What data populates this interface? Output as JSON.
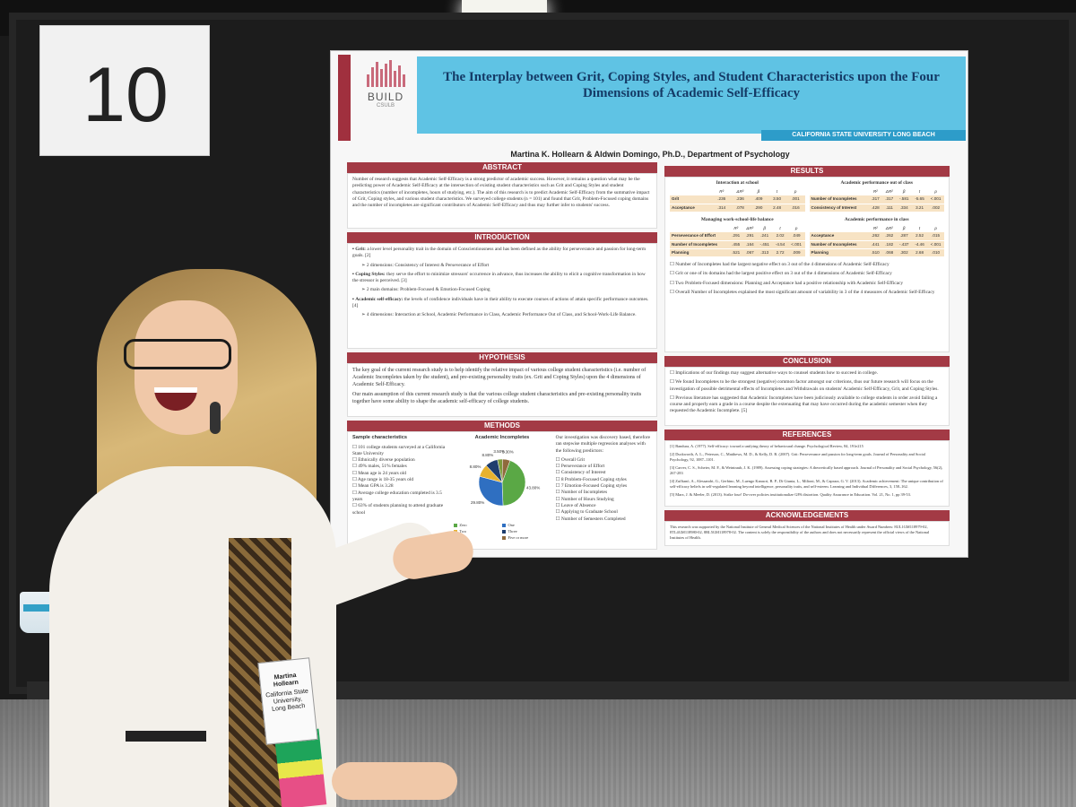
{
  "booth": {
    "number": "10"
  },
  "badge": {
    "line1": "Martina Hollearn",
    "line2": "California State University, Long Beach"
  },
  "poster": {
    "logo": {
      "text": "BUILD",
      "sub": "CSULB"
    },
    "title": "The Interplay between Grit, Coping Styles, and Student Characteristics upon the Four Dimensions of Academic Self-Efficacy",
    "university": "CALIFORNIA STATE UNIVERSITY LONG BEACH",
    "authors": "Martina K. Hollearn & Aldwin Domingo, Ph.D., Department of Psychology",
    "abstract": {
      "heading": "ABSTRACT",
      "text": "Number of research suggests that Academic Self-Efficacy is a strong predictor of academic success. However, it remains a question what may be the predicting power of Academic Self-Efficacy at the intersection of existing student characteristics such as Grit and Coping Styles and student characteristics (number of incompletes, hours of studying, etc.). The aim of this research is to predict Academic Self-Efficacy from the summative impact of Grit, Coping styles, and various student characteristics. We surveyed college students (n = 101) and found that Grit, Problem-Focused coping domains and the number of incompletes are significant contributors of Academic Self-Efficacy and thus may further infer to students' success."
    },
    "introduction": {
      "heading": "INTRODUCTION",
      "grit_term": "Grit:",
      "grit_text": "a lower level personality trait in the domain of Conscientiousness and has been defined as the ability for perseverance and passion for long-term goals. [2]",
      "grit_sub": "2 dimensions: Consistency of Interest & Perseverance of Effort",
      "coping_term": "Coping Styles:",
      "coping_text": "they serve the effort to minimize stressors' occurrence in advance, thus increases the ability to elicit a cognitive transformation in how the stressor is perceived. [3]",
      "coping_sub": "2 main domains: Problem-Focused & Emotion-Focused Coping",
      "ase_term": "Academic self-efficacy:",
      "ase_text": "the levels of confidence individuals have in their ability to execute courses of actions of attain specific performance outcomes. [4]",
      "ase_sub": "4 dimensions: Interaction at School, Academic Performance in Class, Academic Performance Out of Class, and School-Work-Life Balance."
    },
    "hypothesis": {
      "heading": "HYPOTHESIS",
      "p1": "The key goal of the current research study is to help identify the relative impact of various college student characteristics (i.e. number of Academic Incompletes taken by the student), and pre-existing personality traits (ex. Grit and Coping Styles) upon the 4 dimensions of Academic Self-Efficacy.",
      "p2": "Our main assumption of this current research study is that the various college student characteristics and pre-existing personality traits together have some ability to shape the academic self-efficacy of college students."
    },
    "methods": {
      "heading": "METHODS",
      "sample_title": "Sample characteristics",
      "sample": [
        "101 college students surveyed at a California State University",
        "Ethnically diverse population",
        "49% males, 51% females",
        "Mean age is 24 years old",
        "Age range is 18-35 years old",
        "Mean GPA is 3.28",
        "Average college education completed is 3.5 years",
        "63% of students planning to attend graduate school"
      ],
      "pie_title": "Academic Incompletes",
      "pie_labels": [
        "43.80%",
        "29.80%",
        "8.80%",
        "8.80%",
        "3.50%",
        "5.30%"
      ],
      "pie_legend": [
        "Zero",
        "One",
        "Two",
        "Three",
        "Four",
        "Five or more"
      ],
      "pie_colors": [
        "#5aa845",
        "#2f6fc1",
        "#e7b230",
        "#1f3e6e",
        "#7a9b3b",
        "#8f6a3c"
      ],
      "pie_values": [
        43.8,
        29.8,
        8.8,
        8.8,
        3.5,
        5.3
      ],
      "predictors_intro": "Our investigation was discovery based, therefore ran stepwise multiple regression analyses with the following predictors:",
      "predictors": [
        "Overall Grit",
        "Perseverance of Effort",
        "Consistency of Interest",
        "8 Problem-Focused Coping styles",
        "7 Emotion-Focused Coping styles",
        "Number of Incompletes",
        "Number of Hours Studying",
        "Leave of Absence",
        "Applying to Graduate School",
        "Number of Semesters Completed"
      ]
    },
    "results": {
      "heading": "RESULTS",
      "tables": [
        {
          "title": "Interaction at school",
          "cols": [
            "",
            "R²",
            "ΔR²",
            "β",
            "t",
            "p"
          ],
          "rows": [
            [
              "Grit",
              ".236",
              ".236",
              ".409",
              "3.50",
              ".001"
            ],
            [
              "Acceptance",
              ".314",
              ".078",
              ".290",
              "2.48",
              ".016"
            ]
          ]
        },
        {
          "title": "Academic performance out of class",
          "cols": [
            "",
            "R²",
            "ΔR²",
            "β",
            "t",
            "p"
          ],
          "rows": [
            [
              "Number of Incompletes",
              ".317",
              ".317",
              "-.581",
              "-5.65",
              "<.001"
            ],
            [
              "Consistency of Interest",
              ".428",
              ".111",
              ".334",
              "3.21",
              ".002"
            ]
          ]
        },
        {
          "title": "Managing work-school-life balance",
          "cols": [
            "",
            "R²",
            "ΔR²",
            "β",
            "t",
            "p"
          ],
          "rows": [
            [
              "Perseverance of Effort",
              ".291",
              ".291",
              ".241",
              "2.02",
              ".049"
            ],
            [
              "Number of Incompletes",
              ".455",
              ".164",
              "-.451",
              "-4.54",
              "<.001"
            ],
            [
              "Planning",
              ".521",
              ".067",
              ".313",
              "2.72",
              ".009"
            ]
          ]
        },
        {
          "title": "Academic performance in class",
          "cols": [
            "",
            "R²",
            "ΔR²",
            "β",
            "t",
            "p"
          ],
          "rows": [
            [
              "Acceptance",
              ".262",
              ".262",
              ".287",
              "2.52",
              ".015"
            ],
            [
              "Number of Incompletes",
              ".441",
              ".182",
              "-.437",
              "-4.46",
              "<.001"
            ],
            [
              "Planning",
              ".510",
              ".068",
              ".302",
              "2.68",
              ".010"
            ]
          ]
        }
      ],
      "bullets": [
        "Number of Incompletes had the largest negative effect on 3 out of the 4 dimensions of Academic Self-Efficacy",
        "Grit or one of its domains had the largest positive effect on 3 out of the 4 dimensions of Academic Self-Efficacy",
        "Two Problem-Focused dimensions: Planning and Acceptance had a positive relationship with Academic Self-Efficacy",
        "Overall Number of Incompletes explained the most significant amount of variability in 3 of the 4 measures of Academic Self-Efficacy"
      ]
    },
    "conclusion": {
      "heading": "CONCLUSION",
      "bullets": [
        "Implications of our findings may suggest alternative ways to counsel students how to succeed in college.",
        "We found Incompletes to be the strongest (negative) common factor amongst our criterions, thus our future research will focus on the investigation of possible detrimental effects of Incompletes and Withdrawals on students' Academic Self-Efficacy, Grit, and Coping Styles.",
        "Previous literature has suggested that Academic Incompletes have been judiciously available to college students in order avoid failing a course and properly earn a grade in a course despite the extenuating that may have occurred during the academic semester when they requested the Academic Incomplete. [5]"
      ]
    },
    "references": {
      "heading": "REFERENCES",
      "items": [
        "[1] Bandura, A. (1977). Self-efficacy: toward a unifying theory of behavioural change. Psychological Review, 84, 191e215",
        "[2] Duckworth, A. L., Peterson, C., Matthews, M. D., & Kelly, D. R. (2007). Grit: Perseverance and passion for long-term goals. Journal of Personality and Social Psychology, 92, 1087–1101.",
        "[3] Carver, C. S., Scheier, M. F., & Weintraub, J. K. (1989). Assessing coping strategies: A theoretically based approach. Journal of Personality and Social Psychology, 56(2), 267-283",
        "[4] Zuffianò, A., Alessandri, G., Gerbino, M., Luengo Kanacri, B. P., Di Giunta, L., Milioni, M., & Caprara, G. V. (2013). Academic achievement: The unique contribution of self-efficacy beliefs in self-regulated learning beyond intelligence, personality traits, and self-esteem. Learning and Individual Differences, 3, 158–162.",
        "[5] Marx, J. & Meeler, D. (2013). Strike four! Do-over policies institutionalize GPA distortion. Quality Assurance in Education. Vol. 21, No. 1, pp 39-53."
      ]
    },
    "acknowledgements": {
      "heading": "ACKNOWLEDGEMENTS",
      "text": "This research was supported by the National Institute of General Medical Sciences of the National Institutes of Health under Award Numbers: 8UL1GM118979-02, 8TL4GM118980-02, 8RL5GM118978-02. The content is solely the responsibility of the authors and does not necessarily represent the official views of the National Institutes of Health."
    }
  }
}
